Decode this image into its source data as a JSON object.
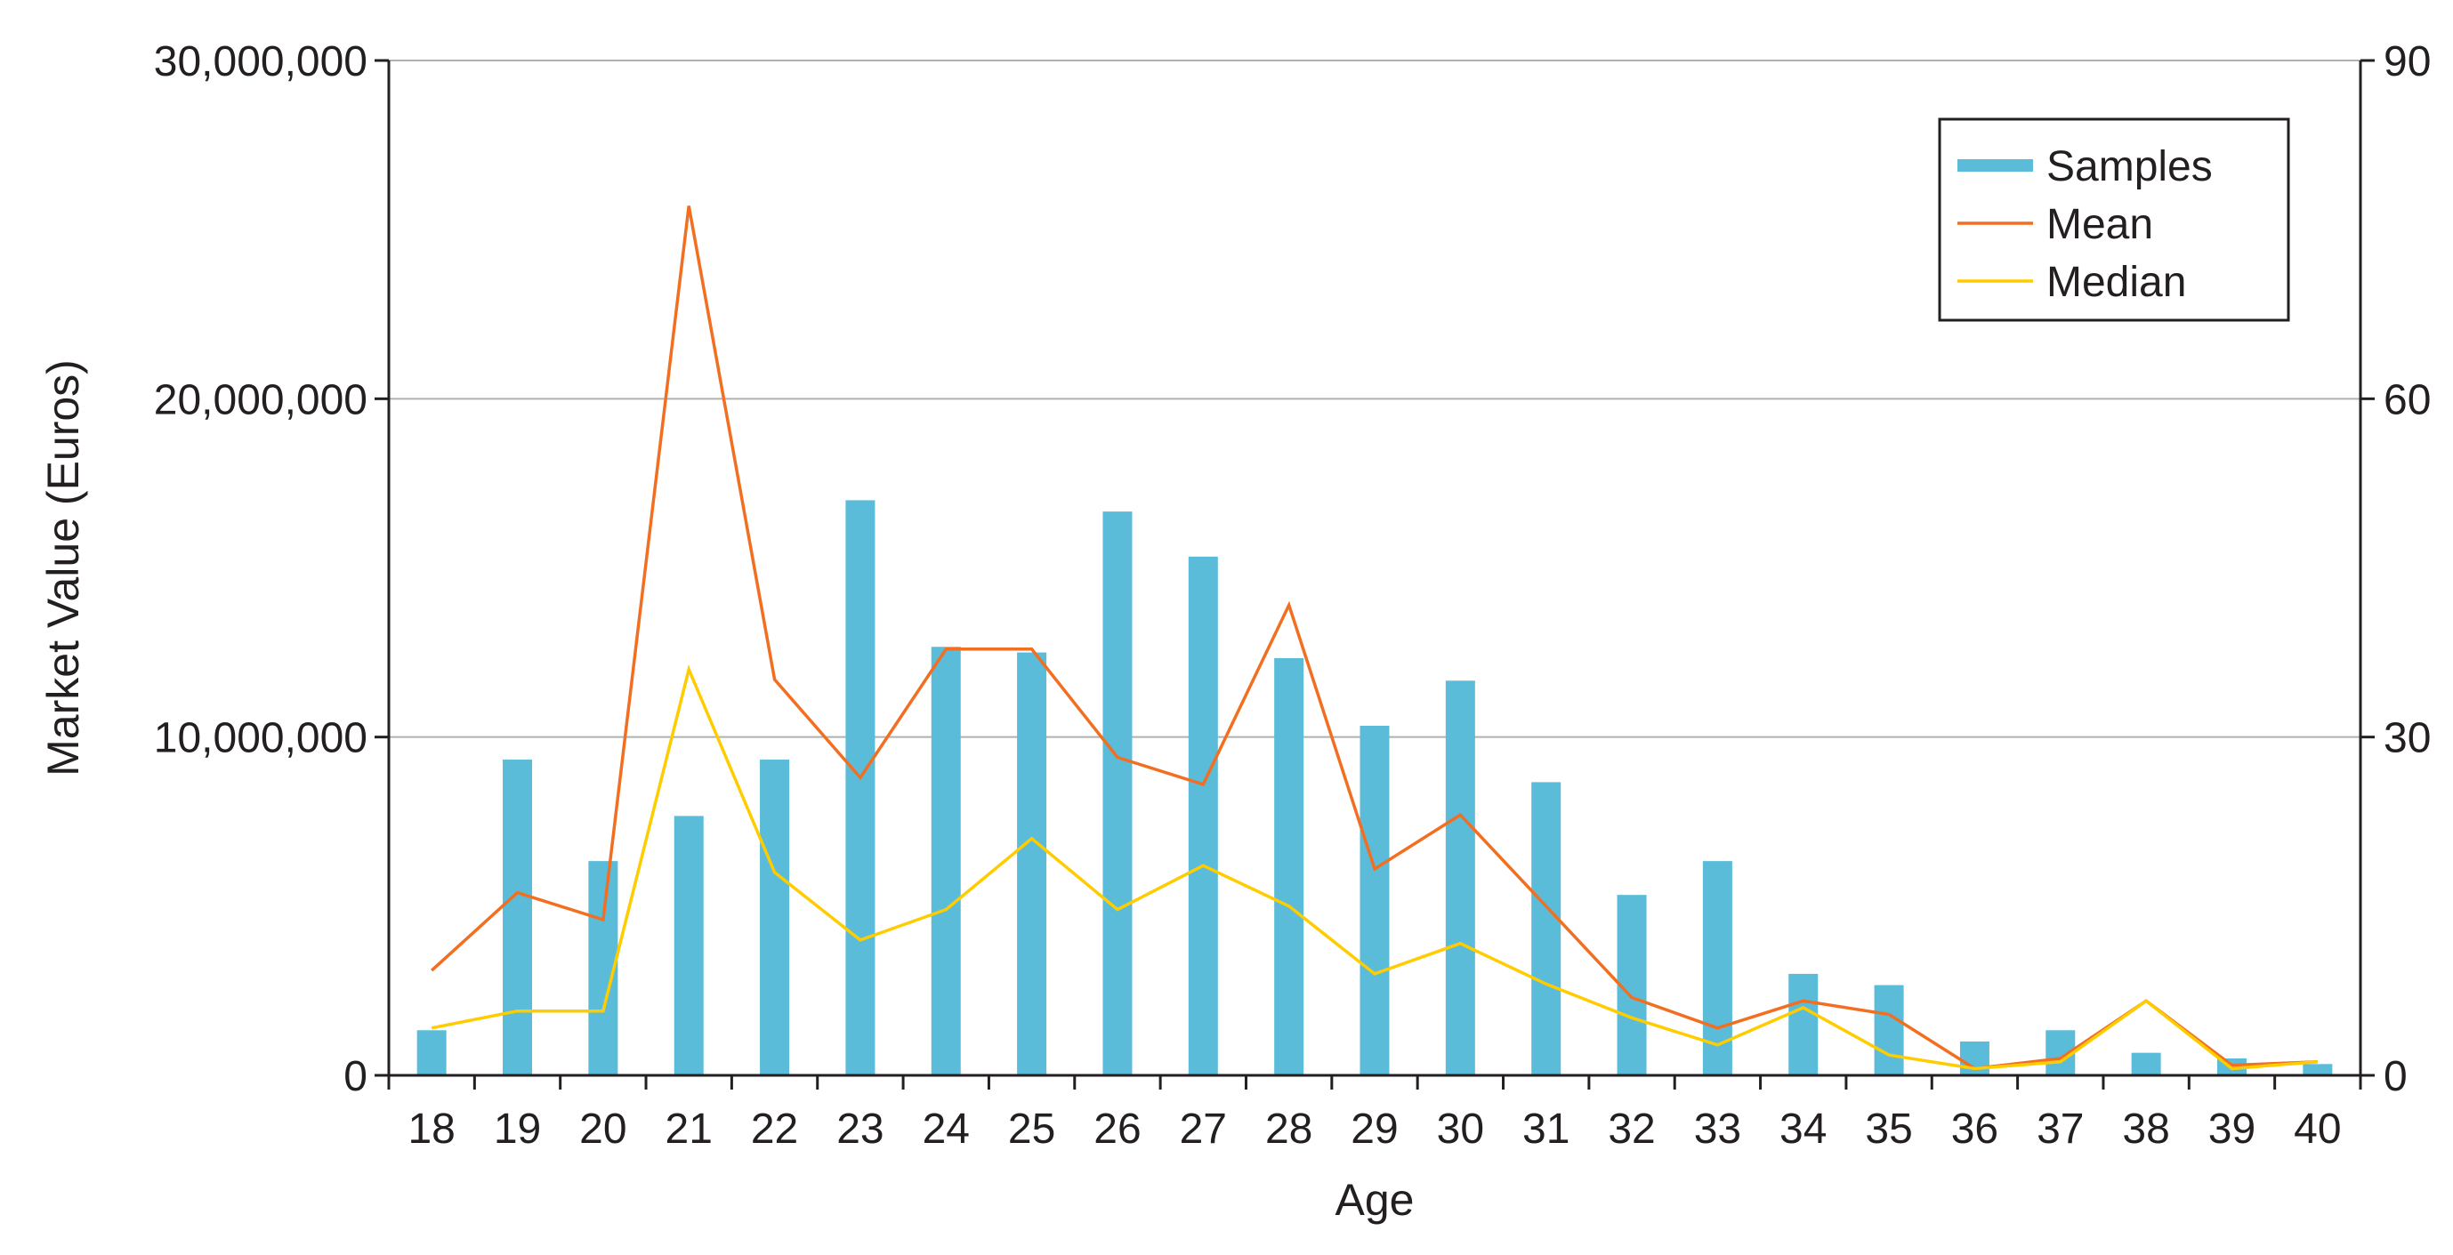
{
  "chart_data": {
    "type": "bar",
    "title": "",
    "xlabel": "Age",
    "ylabel": "Market Value (Euros)",
    "y2label": "",
    "categories": [
      "18",
      "19",
      "20",
      "21",
      "22",
      "23",
      "24",
      "25",
      "26",
      "27",
      "28",
      "29",
      "30",
      "31",
      "32",
      "33",
      "34",
      "35",
      "36",
      "37",
      "38",
      "39",
      "40"
    ],
    "ylim": [
      0,
      30000000
    ],
    "y2lim": [
      0,
      90
    ],
    "y_ticks": [
      0,
      10000000,
      20000000,
      30000000
    ],
    "y_tick_labels": [
      "0",
      "10,000,000",
      "20,000,000",
      "30,000,000"
    ],
    "y2_ticks": [
      0,
      30,
      60,
      90
    ],
    "y2_tick_labels": [
      "0",
      "30",
      "60",
      "90"
    ],
    "grid": true,
    "legend_position": "top-right",
    "series": [
      {
        "name": "Samples",
        "kind": "bar",
        "axis": "right",
        "color": "#5bbcd9",
        "values": [
          4,
          28,
          19,
          23,
          28,
          51,
          38,
          37.5,
          50,
          46,
          37,
          31,
          35,
          26,
          16,
          19,
          9,
          8,
          3,
          4,
          2,
          1.5,
          1
        ]
      },
      {
        "name": "Mean",
        "kind": "line",
        "axis": "left",
        "color": "#f26f21",
        "values": [
          3100000,
          5400000,
          4600000,
          25700000,
          11700000,
          8800000,
          12600000,
          12600000,
          9400000,
          8600000,
          13900000,
          6100000,
          7700000,
          5000000,
          2300000,
          1400000,
          2200000,
          1800000,
          200000,
          500000,
          2200000,
          300000,
          400000
        ]
      },
      {
        "name": "Median",
        "kind": "line",
        "axis": "left",
        "color": "#ffcc00",
        "values": [
          1400000,
          1900000,
          1900000,
          12000000,
          6000000,
          4000000,
          4900000,
          7000000,
          4900000,
          6200000,
          5000000,
          3000000,
          3900000,
          2700000,
          1700000,
          900000,
          2000000,
          600000,
          200000,
          400000,
          2200000,
          200000,
          400000
        ]
      }
    ]
  }
}
